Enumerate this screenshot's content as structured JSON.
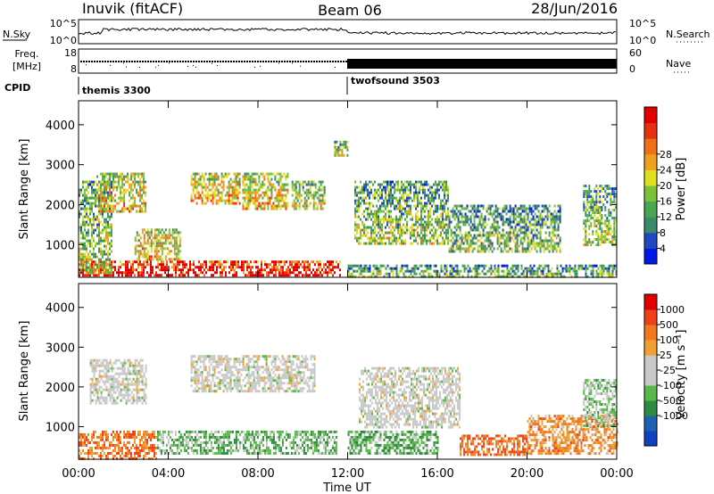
{
  "header": {
    "station": "Inuvik (fitACF)",
    "beam": "Beam 06",
    "date": "28/Jun/2016"
  },
  "strip_panels": {
    "nsky": {
      "label": "N.Sky",
      "ytick_top": "10^5",
      "ytick_bottom": "10^0",
      "right_label": "N.Search",
      "right_ytick_top": "10^5",
      "right_ytick_bottom": "10^0"
    },
    "freq": {
      "label_line1": "Freq.",
      "label_line2": "[MHz]",
      "ytick_top": "18",
      "ytick_bottom": "8",
      "right_label": "Nave",
      "right_ytick_top": "60",
      "right_ytick_bottom": "0"
    },
    "cpid": {
      "label": "CPID",
      "programs": [
        {
          "name": "themis 3300",
          "start_hour": 0
        },
        {
          "name": "twofsound 3503",
          "start_hour": 12
        }
      ]
    }
  },
  "chart_data": [
    {
      "type": "heatmap",
      "quantity": "power",
      "ylabel": "Slant Range [km]",
      "yticks": [
        1000,
        2000,
        3000,
        4000
      ],
      "ylim": [
        180,
        4600
      ],
      "xlim_hours": [
        0,
        24
      ],
      "colorbar": {
        "label": "Power [dB]",
        "ticks": [
          "4",
          "8",
          "12",
          "16",
          "20",
          "24",
          "28"
        ],
        "colors": [
          "#0018e8",
          "#1f49c2",
          "#3c8a6c",
          "#4aa552",
          "#7cc238",
          "#e0e020",
          "#f0a020",
          "#f07018",
          "#e83010",
          "#e00000"
        ]
      },
      "echo_regions": [
        {
          "t0": 0.0,
          "t1": 11.7,
          "r0": 200,
          "r1": 600,
          "level": 0.9
        },
        {
          "t0": 0.0,
          "t1": 1.5,
          "r0": 300,
          "r1": 2600,
          "level": 0.4
        },
        {
          "t0": 0.8,
          "t1": 3.0,
          "r0": 1800,
          "r1": 2800,
          "level": 0.55
        },
        {
          "t0": 2.5,
          "t1": 4.5,
          "r0": 600,
          "r1": 1400,
          "level": 0.55
        },
        {
          "t0": 5.0,
          "t1": 7.2,
          "r0": 2000,
          "r1": 2800,
          "level": 0.6
        },
        {
          "t0": 7.3,
          "t1": 9.3,
          "r0": 1900,
          "r1": 2800,
          "level": 0.55
        },
        {
          "t0": 9.5,
          "t1": 11.0,
          "r0": 1900,
          "r1": 2600,
          "level": 0.45
        },
        {
          "t0": 11.4,
          "t1": 12.0,
          "r0": 3200,
          "r1": 3600,
          "level": 0.4
        },
        {
          "t0": 12.0,
          "t1": 24.0,
          "r0": 200,
          "r1": 500,
          "level": 0.35
        },
        {
          "t0": 12.3,
          "t1": 16.5,
          "r0": 1000,
          "r1": 2600,
          "level": 0.4
        },
        {
          "t0": 16.5,
          "t1": 21.5,
          "r0": 800,
          "r1": 2000,
          "level": 0.35
        },
        {
          "t0": 22.5,
          "t1": 24.0,
          "r0": 1000,
          "r1": 2500,
          "level": 0.4
        }
      ]
    },
    {
      "type": "heatmap",
      "quantity": "velocity",
      "ylabel": "Slant Range [km]",
      "yticks": [
        1000,
        2000,
        3000,
        4000
      ],
      "ylim": [
        180,
        4600
      ],
      "xlim_hours": [
        0,
        24
      ],
      "xlabel": "Time UT",
      "xticks": [
        "00:00",
        "04:00",
        "08:00",
        "12:00",
        "16:00",
        "20:00",
        "00:00"
      ],
      "colorbar": {
        "label": "Velocity [m s⁻¹]",
        "ticks": [
          "1000",
          "500",
          "100",
          "25",
          "-25",
          "-100",
          "-500",
          "-1000"
        ],
        "colors": [
          "#1040c0",
          "#2060b0",
          "#2f8a40",
          "#5ab848",
          "#c8c8c8",
          "#c8c8c8",
          "#f0a030",
          "#f07820",
          "#f04018",
          "#e00000"
        ]
      },
      "echo_regions": [
        {
          "t0": 0.0,
          "t1": 3.5,
          "r0": 200,
          "r1": 900,
          "level": -0.5
        },
        {
          "t0": 0.5,
          "t1": 3.0,
          "r0": 1600,
          "r1": 2700,
          "level": 0.0
        },
        {
          "t0": 3.5,
          "t1": 11.5,
          "r0": 300,
          "r1": 900,
          "level": 0.3
        },
        {
          "t0": 5.0,
          "t1": 10.5,
          "r0": 1900,
          "r1": 2800,
          "level": 0.0
        },
        {
          "t0": 12.0,
          "t1": 16.0,
          "r0": 300,
          "r1": 900,
          "level": 0.35
        },
        {
          "t0": 12.5,
          "t1": 17.0,
          "r0": 1000,
          "r1": 2500,
          "level": 0.0
        },
        {
          "t0": 17.0,
          "t1": 20.0,
          "r0": 300,
          "r1": 800,
          "level": -0.55
        },
        {
          "t0": 20.0,
          "t1": 24.0,
          "r0": 300,
          "r1": 1300,
          "level": -0.4
        },
        {
          "t0": 22.5,
          "t1": 24.0,
          "r0": 1000,
          "r1": 2200,
          "level": 0.2
        }
      ]
    }
  ]
}
